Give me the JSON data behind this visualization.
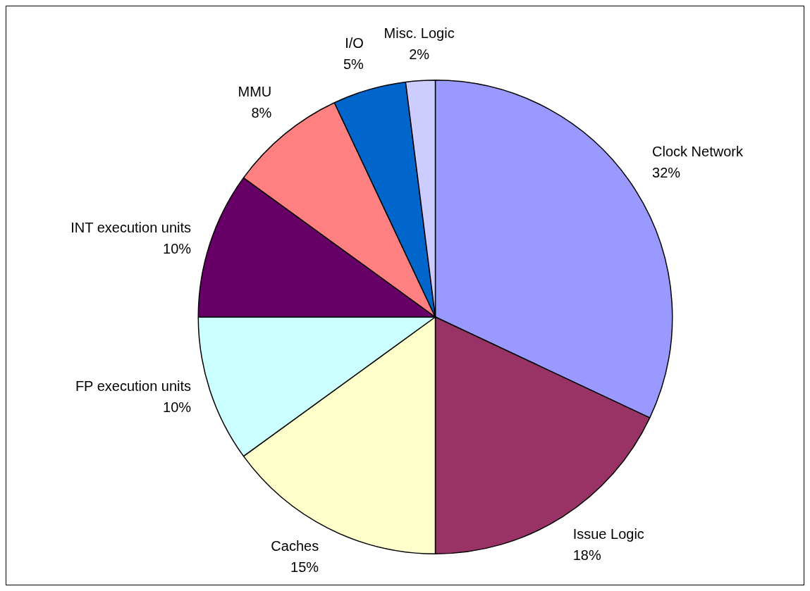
{
  "chart_data": {
    "type": "pie",
    "categories": [
      "Clock Network",
      "Issue Logic",
      "Caches",
      "FP execution units",
      "INT execution units",
      "MMU",
      "I/O",
      "Misc. Logic"
    ],
    "values": [
      32,
      18,
      15,
      10,
      10,
      8,
      5,
      2
    ],
    "colors": [
      "#9999ff",
      "#993366",
      "#ffffcc",
      "#ccffff",
      "#660066",
      "#ff8080",
      "#0066cc",
      "#ccccff"
    ],
    "value_labels": [
      "32%",
      "18%",
      "15%",
      "10%",
      "10%",
      "8%",
      "5%",
      "2%"
    ],
    "legend": false
  }
}
